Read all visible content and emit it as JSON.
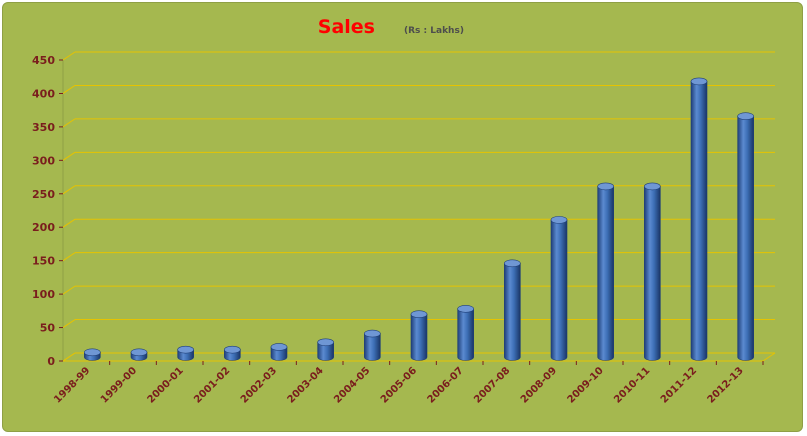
{
  "chart_data": {
    "type": "bar",
    "title": "Sales",
    "subtitle": "(Rs : Lakhs)",
    "xlabel": "",
    "ylabel": "",
    "categories": [
      "1998-99",
      "1999-00",
      "2000-01",
      "2001-02",
      "2002-03",
      "2003-04",
      "2004-05",
      "2005-06",
      "2006-07",
      "2007-08",
      "2008-09",
      "2009-10",
      "2010-11",
      "2011-12",
      "2012-13"
    ],
    "values": [
      7,
      7,
      11,
      11,
      15,
      22,
      35,
      64,
      72,
      140,
      205,
      255,
      255,
      412,
      360
    ],
    "ylim": [
      0,
      450
    ],
    "yticks": [
      0,
      50,
      100,
      150,
      200,
      250,
      300,
      350,
      400,
      450
    ],
    "grid": true,
    "legend": "none",
    "colors": {
      "background": "#a5b84f",
      "gridline": "#e6c300",
      "bar": "#3d6fb6",
      "bar_dark": "#1f3f78",
      "bar_top": "#6f97d4",
      "title": "#ff0000",
      "tick_text": "#7a1d1d"
    }
  }
}
